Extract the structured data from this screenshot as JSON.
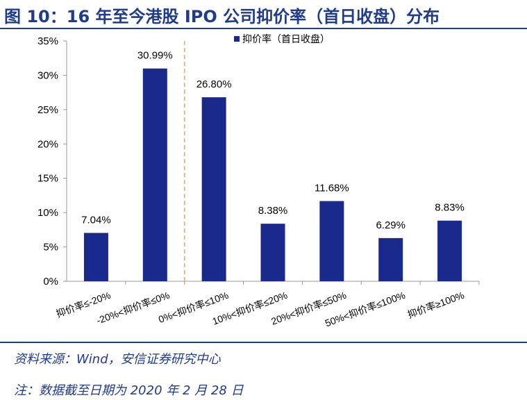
{
  "title": "图 10：16 年至今港股 IPO 公司抑价率（首日收盘）分布",
  "source": "资料来源：Wind，安信证券研究中心",
  "note": "注：数据截至日期为 2020 年 2 月 28 日",
  "colors": {
    "bar": "#1a2a8c",
    "accent": "#1f3b8c",
    "divider": "#f4a261"
  },
  "chart_data": {
    "type": "bar",
    "legend": "抑价率（首日收盘）",
    "legend_position": "top-center",
    "categories": [
      "抑价率≤-20%",
      "-20%<抑价率≤0%",
      "0%<抑价率≤10%",
      "10%<抑价率≤20%",
      "20%<抑价率≤50%",
      "50%<抑价率≤100%",
      "抑价率≥100%"
    ],
    "values": [
      7.04,
      30.99,
      26.8,
      8.38,
      11.68,
      6.29,
      8.83
    ],
    "data_labels": [
      "7.04%",
      "30.99%",
      "26.80%",
      "8.38%",
      "11.68%",
      "6.29%",
      "8.83%"
    ],
    "y_ticks": [
      "0%",
      "5%",
      "10%",
      "15%",
      "20%",
      "25%",
      "30%",
      "35%"
    ],
    "ylim": [
      0,
      35
    ],
    "grid": false,
    "divider_after_category": 1
  }
}
